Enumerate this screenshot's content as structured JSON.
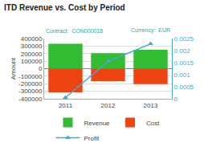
{
  "chart_data": {
    "type": "bar",
    "title": "ITD Revenue vs. Cost by Period",
    "subtitle": [
      "Contract:  CON000018",
      "Currency:  EUR"
    ],
    "categories": [
      "2011",
      "2012",
      "2013"
    ],
    "series": [
      {
        "name": "Revenue",
        "type": "bar",
        "color": "#33bb33",
        "values": [
          330000,
          205000,
          250000
        ]
      },
      {
        "name": "Cost",
        "type": "bar",
        "color": "#ee4411",
        "values": [
          -315000,
          -165000,
          -205000
        ]
      },
      {
        "name": "Profit",
        "type": "line",
        "color": "#44aacc",
        "values": [
          5e-05,
          0.00155,
          0.00228
        ],
        "axis": "y2",
        "marker": "triangle-up",
        "line_style": "solid"
      }
    ],
    "ylabel": "Amount",
    "ylim": [
      -400000,
      400000
    ],
    "yticks": [
      -400000,
      -300000,
      -200000,
      -100000,
      0,
      100000,
      200000,
      300000,
      400000
    ],
    "y2lim": [
      0,
      0.0025
    ],
    "y2ticks": [
      0,
      0.0005,
      0.001,
      0.0015,
      0.002,
      0.0025
    ],
    "grid": true,
    "legend": "bottom"
  }
}
